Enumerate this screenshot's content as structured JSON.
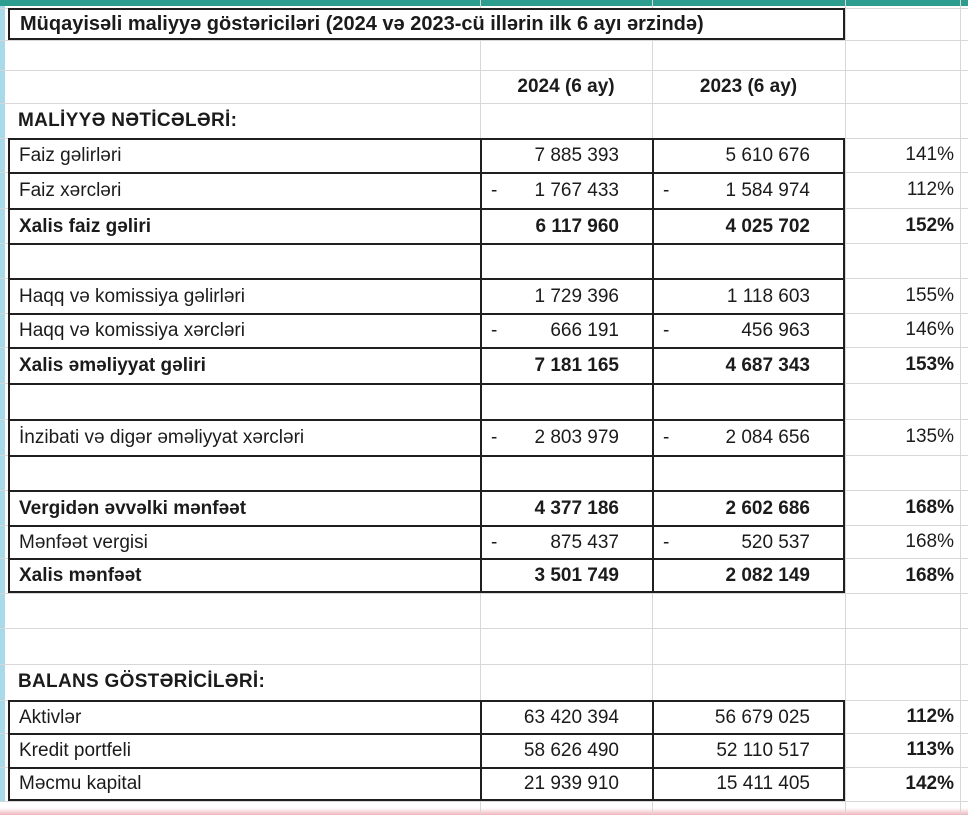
{
  "title": "Müqayisəli maliyyə göstəriciləri (2024 və 2023-cü illərin ilk 6 ayı ərzində)",
  "columns": {
    "y2024": "2024 (6 ay)",
    "y2023": "2023 (6 ay)"
  },
  "negative_sign": "-",
  "colors": {
    "top_strip": "#2d9d8f",
    "left_strip": "#a9daea",
    "table_border": "#1f1f1f",
    "gridline": "#d7d7d7",
    "bottom_artifact": "#e27884"
  },
  "rows": [
    {
      "type": "title"
    },
    {
      "type": "empty"
    },
    {
      "type": "header"
    },
    {
      "type": "section",
      "label": "MALİYYƏ NƏTİCƏLƏRİ:"
    },
    {
      "type": "data",
      "label": "Faiz gəlirləri",
      "v2024": "7 885 393",
      "v2023": "5 610 676",
      "pct": "141%",
      "negative": false,
      "bold": false,
      "pct_bold": false
    },
    {
      "type": "data",
      "label": "Faiz xərcləri",
      "v2024": "1 767 433",
      "v2023": "1 584 974",
      "pct": "112%",
      "negative": true,
      "bold": false,
      "pct_bold": false
    },
    {
      "type": "data",
      "label": "Xalis faiz gəliri",
      "v2024": "6 117 960",
      "v2023": "4 025 702",
      "pct": "152%",
      "negative": false,
      "bold": true,
      "pct_bold": true
    },
    {
      "type": "sep"
    },
    {
      "type": "data",
      "label": "Haqq və komissiya gəlirləri",
      "v2024": "1 729 396",
      "v2023": "1 118 603",
      "pct": "155%",
      "negative": false,
      "bold": false,
      "pct_bold": false
    },
    {
      "type": "data",
      "label": "Haqq və komissiya xərcləri",
      "v2024": "666 191",
      "v2023": "456 963",
      "pct": "146%",
      "negative": true,
      "bold": false,
      "pct_bold": false
    },
    {
      "type": "data",
      "label": "Xalis əməliyyat gəliri",
      "v2024": "7 181 165",
      "v2023": "4 687 343",
      "pct": "153%",
      "negative": false,
      "bold": true,
      "pct_bold": true
    },
    {
      "type": "sep"
    },
    {
      "type": "data",
      "label": "İnzibati və digər əməliyyat xərcləri",
      "v2024": "2 803 979",
      "v2023": "2 084 656",
      "pct": "135%",
      "negative": true,
      "bold": false,
      "pct_bold": false
    },
    {
      "type": "sep"
    },
    {
      "type": "data",
      "label": "Vergidən əvvəlki mənfəət",
      "v2024": "4 377 186",
      "v2023": "2 602 686",
      "pct": "168%",
      "negative": false,
      "bold": true,
      "pct_bold": true
    },
    {
      "type": "data",
      "label": "Mənfəət vergisi",
      "v2024": "875 437",
      "v2023": "520 537",
      "pct": "168%",
      "negative": true,
      "bold": false,
      "pct_bold": false
    },
    {
      "type": "data",
      "label": "Xalis mənfəət",
      "v2024": "3 501 749",
      "v2023": "2 082 149",
      "pct": "168%",
      "negative": false,
      "bold": true,
      "pct_bold": true
    },
    {
      "type": "empty"
    },
    {
      "type": "empty"
    },
    {
      "type": "section",
      "label": "BALANS GÖSTƏRİCİLƏRİ:"
    },
    {
      "type": "data",
      "label": "Aktivlər",
      "v2024": "63 420 394",
      "v2023": "56 679 025",
      "pct": "112%",
      "negative": false,
      "bold": false,
      "pct_bold": true
    },
    {
      "type": "data",
      "label": "Kredit portfeli",
      "v2024": "58 626 490",
      "v2023": "52 110 517",
      "pct": "113%",
      "negative": false,
      "bold": false,
      "pct_bold": true
    },
    {
      "type": "data",
      "label": "Məcmu kapital",
      "v2024": "21 939 910",
      "v2023": "15 411 405",
      "pct": "142%",
      "negative": false,
      "bold": false,
      "pct_bold": true
    },
    {
      "type": "empty"
    }
  ]
}
